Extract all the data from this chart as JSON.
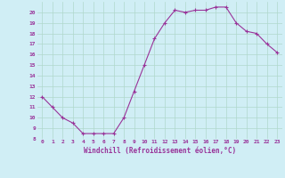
{
  "x": [
    0,
    1,
    2,
    3,
    4,
    5,
    6,
    7,
    8,
    9,
    10,
    11,
    12,
    13,
    14,
    15,
    16,
    17,
    18,
    19,
    20,
    21,
    22,
    23
  ],
  "y": [
    12,
    11,
    10,
    9.5,
    8.5,
    8.5,
    8.5,
    8.5,
    10,
    12.5,
    15,
    17.5,
    19,
    20.2,
    20,
    20.2,
    20.2,
    20.5,
    20.5,
    19,
    18.2,
    18,
    17,
    16.2
  ],
  "line_color": "#993399",
  "marker": "+",
  "xlabel": "Windchill (Refroidissement éolien,°C)",
  "xlim": [
    -0.5,
    23.5
  ],
  "ylim": [
    8,
    21
  ],
  "yticks": [
    8,
    9,
    10,
    11,
    12,
    13,
    14,
    15,
    16,
    17,
    18,
    19,
    20
  ],
  "xticks": [
    0,
    1,
    2,
    3,
    4,
    5,
    6,
    7,
    8,
    9,
    10,
    11,
    12,
    13,
    14,
    15,
    16,
    17,
    18,
    19,
    20,
    21,
    22,
    23
  ],
  "bg_color": "#d0eef5",
  "grid_color": "#b0d8cc",
  "font_color": "#993399"
}
